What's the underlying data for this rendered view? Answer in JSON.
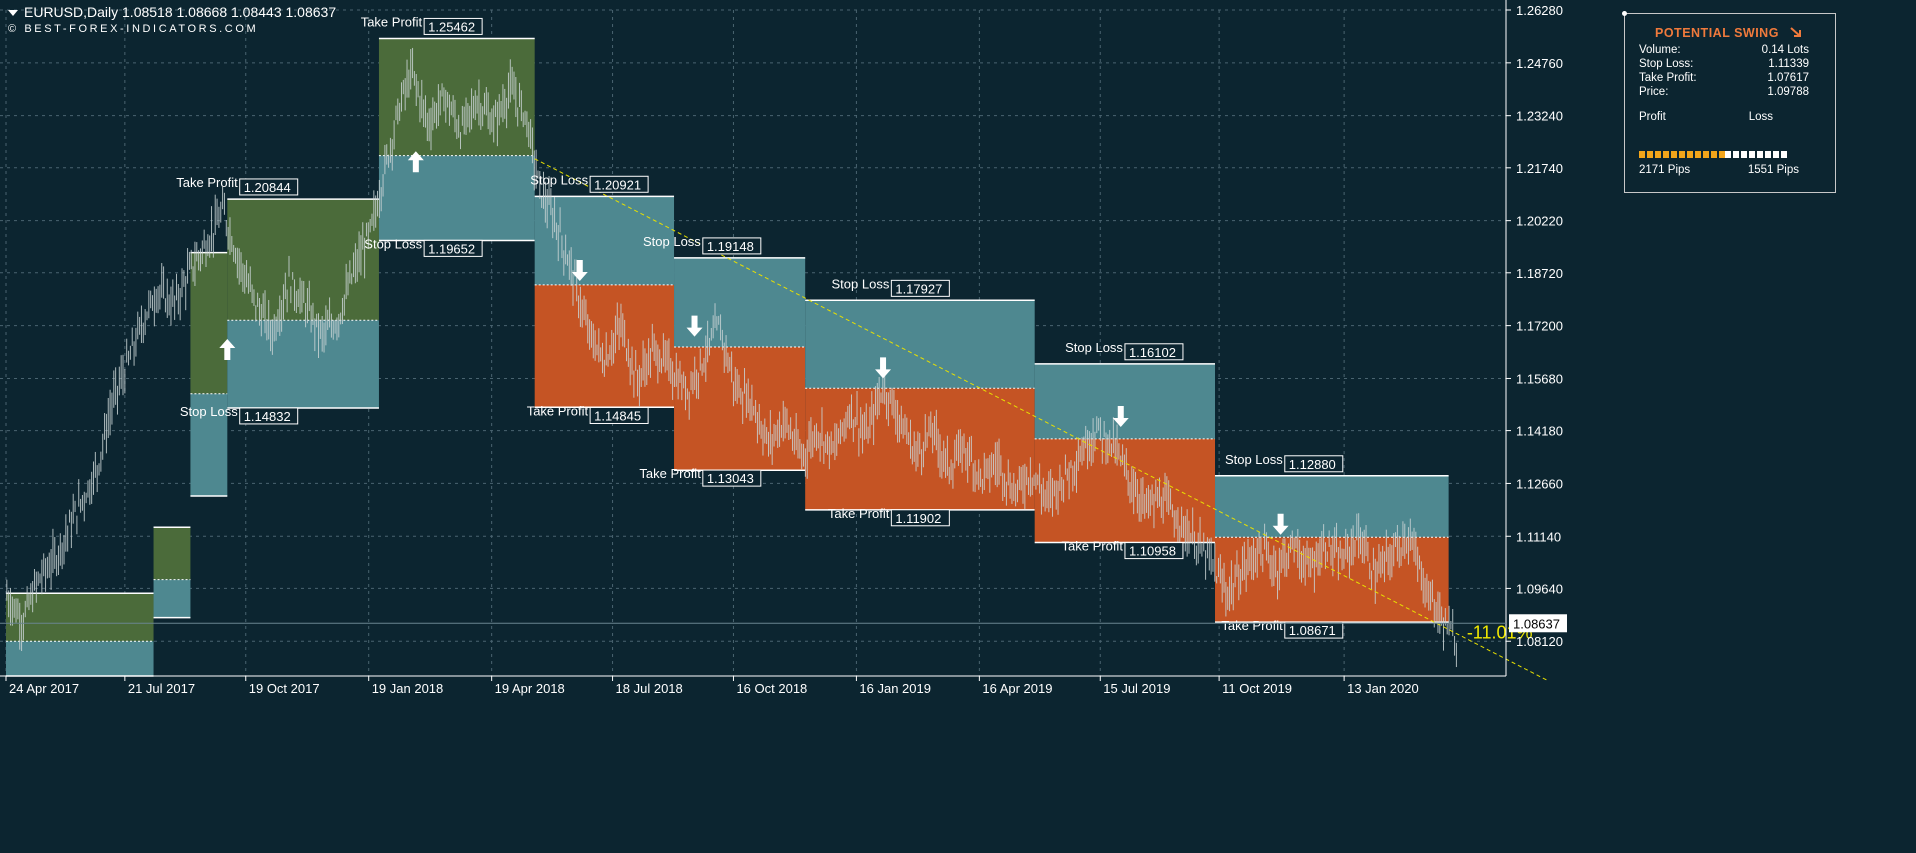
{
  "header": {
    "symbol_line": "EURUSD,Daily  1.08518 1.08668 1.08443 1.08637",
    "watermark": "© BEST-FOREX-INDICATORS.COM"
  },
  "panel": {
    "title": "POTENTIAL SWING",
    "title_icon": "arrow-down-right-icon",
    "rows": [
      {
        "label": "Volume:",
        "value": "0.14 Lots"
      },
      {
        "label": "Stop Loss:",
        "value": "1.11339"
      },
      {
        "label": "Take Profit:",
        "value": "1.07617"
      },
      {
        "label": "Price:",
        "value": "1.09788"
      }
    ],
    "profit_label": "Profit",
    "loss_label": "Loss",
    "profit_pips": "2171 Pips",
    "loss_pips": "1551 Pips",
    "profit_ratio": 0.583
  },
  "chart_data": {
    "type": "line",
    "instrument": "EURUSD",
    "timeframe": "Daily",
    "last_price": "1.08637",
    "ylim": [
      1.0712,
      1.2628
    ],
    "y_ticks": [
      "1.26280",
      "1.24760",
      "1.23240",
      "1.21740",
      "1.20220",
      "1.18720",
      "1.17200",
      "1.15680",
      "1.14180",
      "1.12660",
      "1.11140",
      "1.09640",
      "1.08120"
    ],
    "x_ticks": [
      "24 Apr 2017",
      "21 Jul 2017",
      "19 Oct 2017",
      "19 Jan 2018",
      "19 Apr 2018",
      "18 Jul 2018",
      "16 Oct 2018",
      "16 Jan 2019",
      "16 Apr 2019",
      "15 Jul 2019",
      "11 Oct 2019",
      "13 Jan 2020"
    ],
    "x_tick_months": [
      0,
      2.9,
      5.85,
      8.85,
      11.85,
      14.8,
      17.75,
      20.75,
      23.75,
      26.7,
      29.6,
      32.65
    ],
    "xlim_months": [
      0,
      36.6
    ],
    "trend_change_label": "-11.01%",
    "colors": {
      "up_zone": "#4b6b3a",
      "down_zone": "#c55424",
      "stop_zone": "#4e8890",
      "trend_line": "#e8e000",
      "candles": "#c9d3d4"
    },
    "swings": [
      {
        "dir": "up",
        "t0": 0.0,
        "t1": 3.6,
        "sl": 1.0712,
        "tp": 1.095
      },
      {
        "dir": "up",
        "t0": 3.6,
        "t1": 4.5,
        "sl": 1.088,
        "tp": 1.114
      },
      {
        "dir": "up",
        "t0": 4.5,
        "t1": 5.4,
        "sl": 1.123,
        "tp": 1.193
      },
      {
        "dir": "up",
        "t0": 5.4,
        "t1": 9.1,
        "sl": 1.1483,
        "tp": 1.2084
      },
      {
        "dir": "up",
        "t0": 9.1,
        "t1": 12.9,
        "sl": 1.1965,
        "tp": 1.2546
      },
      {
        "dir": "down",
        "t0": 12.9,
        "t1": 16.3,
        "sl": 1.2092,
        "tp": 1.1485
      },
      {
        "dir": "down",
        "t0": 16.3,
        "t1": 19.5,
        "sl": 1.1915,
        "tp": 1.1304
      },
      {
        "dir": "down",
        "t0": 19.5,
        "t1": 25.1,
        "sl": 1.1793,
        "tp": 1.119
      },
      {
        "dir": "down",
        "t0": 25.1,
        "t1": 29.5,
        "sl": 1.161,
        "tp": 1.1096
      },
      {
        "dir": "down",
        "t0": 29.5,
        "t1": 35.2,
        "sl": 1.1288,
        "tp": 1.0867
      }
    ],
    "annotations": [
      {
        "kind": "Take Profit",
        "value": "1.20844",
        "t": 5.8
      },
      {
        "kind": "Stop Loss",
        "value": "1.14832",
        "t": 5.8
      },
      {
        "kind": "Take Profit",
        "value": "1.25462",
        "t": 10.3
      },
      {
        "kind": "Stop Loss",
        "value": "1.19652",
        "t": 10.3
      },
      {
        "kind": "Stop Loss",
        "value": "1.20921",
        "t": 14.35
      },
      {
        "kind": "Take Profit",
        "value": "1.14845",
        "t": 14.35
      },
      {
        "kind": "Stop Loss",
        "value": "1.19148",
        "t": 17.1
      },
      {
        "kind": "Take Profit",
        "value": "1.13043",
        "t": 17.1
      },
      {
        "kind": "Stop Loss",
        "value": "1.17927",
        "t": 21.7
      },
      {
        "kind": "Take Profit",
        "value": "1.11902",
        "t": 21.7
      },
      {
        "kind": "Stop Loss",
        "value": "1.16102",
        "t": 27.4
      },
      {
        "kind": "Take Profit",
        "value": "1.10958",
        "t": 27.4
      },
      {
        "kind": "Stop Loss",
        "value": "1.12880",
        "t": 31.3
      },
      {
        "kind": "Take Profit",
        "value": "1.08671",
        "t": 31.3
      }
    ],
    "signal_arrows": [
      {
        "dir": "up",
        "t": 5.4,
        "price": 1.165
      },
      {
        "dir": "up",
        "t": 10.0,
        "price": 1.219
      },
      {
        "dir": "down",
        "t": 14.0,
        "price": 1.188
      },
      {
        "dir": "down",
        "t": 16.8,
        "price": 1.172
      },
      {
        "dir": "down",
        "t": 21.4,
        "price": 1.16
      },
      {
        "dir": "down",
        "t": 27.2,
        "price": 1.146
      },
      {
        "dir": "down",
        "t": 31.1,
        "price": 1.115
      }
    ],
    "trend_line": {
      "t0": 12.9,
      "p0": 1.22,
      "t1": 37.6,
      "p1": 1.07
    },
    "price_path": [
      [
        0.0,
        1.095
      ],
      [
        0.4,
        1.087
      ],
      [
        0.8,
        1.099
      ],
      [
        1.2,
        1.105
      ],
      [
        1.7,
        1.118
      ],
      [
        2.2,
        1.13
      ],
      [
        2.6,
        1.15
      ],
      [
        3.0,
        1.162
      ],
      [
        3.4,
        1.175
      ],
      [
        3.7,
        1.182
      ],
      [
        4.1,
        1.178
      ],
      [
        4.5,
        1.188
      ],
      [
        4.9,
        1.196
      ],
      [
        5.3,
        1.205
      ],
      [
        5.7,
        1.19
      ],
      [
        6.1,
        1.178
      ],
      [
        6.5,
        1.17
      ],
      [
        6.9,
        1.185
      ],
      [
        7.3,
        1.178
      ],
      [
        7.7,
        1.169
      ],
      [
        8.1,
        1.174
      ],
      [
        8.5,
        1.188
      ],
      [
        8.9,
        1.199
      ],
      [
        9.2,
        1.215
      ],
      [
        9.6,
        1.235
      ],
      [
        9.9,
        1.245
      ],
      [
        10.3,
        1.23
      ],
      [
        10.7,
        1.238
      ],
      [
        11.1,
        1.228
      ],
      [
        11.5,
        1.237
      ],
      [
        11.9,
        1.23
      ],
      [
        12.3,
        1.24
      ],
      [
        12.7,
        1.232
      ],
      [
        13.0,
        1.212
      ],
      [
        13.4,
        1.202
      ],
      [
        13.8,
        1.188
      ],
      [
        14.2,
        1.17
      ],
      [
        14.6,
        1.162
      ],
      [
        15.0,
        1.172
      ],
      [
        15.4,
        1.156
      ],
      [
        15.8,
        1.165
      ],
      [
        16.2,
        1.16
      ],
      [
        16.6,
        1.153
      ],
      [
        17.0,
        1.162
      ],
      [
        17.4,
        1.172
      ],
      [
        17.8,
        1.154
      ],
      [
        18.2,
        1.15
      ],
      [
        18.6,
        1.138
      ],
      [
        19.0,
        1.145
      ],
      [
        19.4,
        1.134
      ],
      [
        19.8,
        1.142
      ],
      [
        20.2,
        1.136
      ],
      [
        20.6,
        1.148
      ],
      [
        21.0,
        1.14
      ],
      [
        21.4,
        1.155
      ],
      [
        21.8,
        1.145
      ],
      [
        22.2,
        1.135
      ],
      [
        22.6,
        1.142
      ],
      [
        23.0,
        1.131
      ],
      [
        23.4,
        1.137
      ],
      [
        23.8,
        1.128
      ],
      [
        24.2,
        1.133
      ],
      [
        24.6,
        1.124
      ],
      [
        25.0,
        1.13
      ],
      [
        25.4,
        1.122
      ],
      [
        25.8,
        1.128
      ],
      [
        26.2,
        1.135
      ],
      [
        26.6,
        1.142
      ],
      [
        27.0,
        1.138
      ],
      [
        27.4,
        1.128
      ],
      [
        27.8,
        1.12
      ],
      [
        28.2,
        1.122
      ],
      [
        28.6,
        1.116
      ],
      [
        29.0,
        1.11
      ],
      [
        29.4,
        1.104
      ],
      [
        29.8,
        1.095
      ],
      [
        30.2,
        1.102
      ],
      [
        30.6,
        1.108
      ],
      [
        31.0,
        1.102
      ],
      [
        31.4,
        1.109
      ],
      [
        31.8,
        1.102
      ],
      [
        32.2,
        1.109
      ],
      [
        32.6,
        1.104
      ],
      [
        33.0,
        1.112
      ],
      [
        33.4,
        1.1
      ],
      [
        33.8,
        1.106
      ],
      [
        34.2,
        1.112
      ],
      [
        34.6,
        1.098
      ],
      [
        35.0,
        1.088
      ],
      [
        35.2,
        1.085
      ],
      [
        35.4,
        1.08
      ]
    ]
  }
}
